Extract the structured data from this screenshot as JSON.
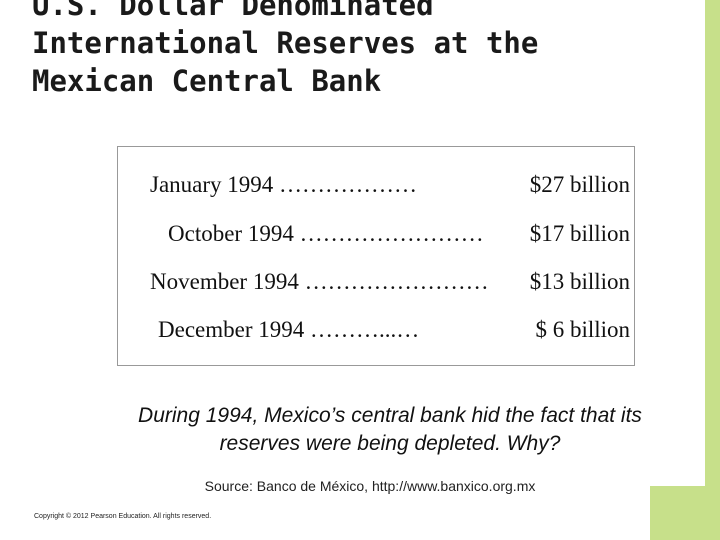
{
  "title": {
    "line1": "U.S. Dollar Denominated",
    "line2": "International Reserves at the",
    "line3": "Mexican Central Bank"
  },
  "reserves": [
    {
      "period": "January 1994 ………………",
      "amount": "$27 billion"
    },
    {
      "period": "October 1994 ……………………",
      "amount": "$17 billion"
    },
    {
      "period": "November 1994 ……………………",
      "amount": "$13 billion"
    },
    {
      "period": "December 1994 ………...…",
      "amount": "$ 6 billion"
    }
  ],
  "question": {
    "line1": "During 1994, Mexico’s central bank hid the fact that its",
    "line2": "reserves were being depleted.  Why?"
  },
  "source": "Source: Banco de México, http://www.banxico.org.mx",
  "copyright": "Copyright © 2012 Pearson Education. All rights reserved.",
  "colors": {
    "accent": "#c7e08a"
  }
}
